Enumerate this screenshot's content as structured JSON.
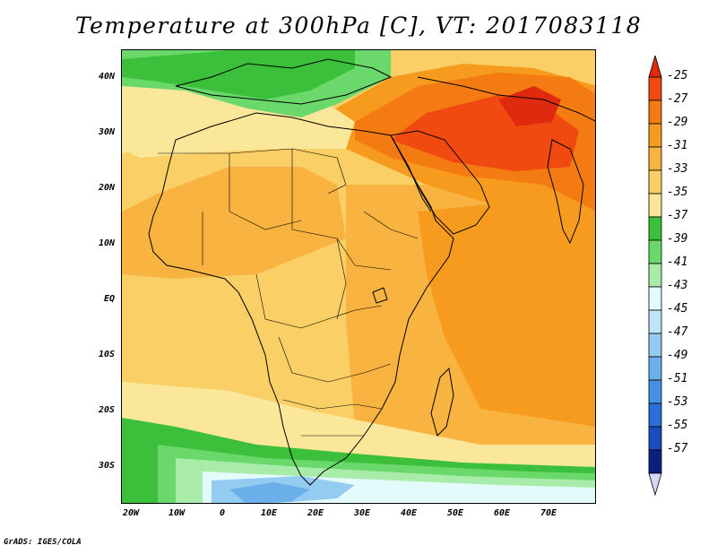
{
  "title": "Temperature at 300hPa [C], VT: 2017083118",
  "credit": "GrADS: IGES/COLA",
  "axes": {
    "lat_labels": [
      "40N",
      "30N",
      "20N",
      "10N",
      "EQ",
      "10S",
      "20S",
      "30S"
    ],
    "lon_labels": [
      "20W",
      "10W",
      "0",
      "10E",
      "20E",
      "30E",
      "40E",
      "50E",
      "60E",
      "70E"
    ]
  },
  "colorbar": {
    "labels": [
      "-25",
      "-27",
      "-29",
      "-31",
      "-33",
      "-35",
      "-37",
      "-39",
      "-41",
      "-43",
      "-45",
      "-47",
      "-49",
      "-51",
      "-53",
      "-55",
      "-57"
    ],
    "colors": [
      "#f04a10",
      "#f47a12",
      "#f79b1e",
      "#f8b341",
      "#f9cf66",
      "#fbe79a",
      "#3cc03c",
      "#6ad86a",
      "#a9eca9",
      "#e4fbfb",
      "#bfe4f6",
      "#93ccf0",
      "#6bb0ea",
      "#4591e3",
      "#2a6fd8",
      "#1a4cbd",
      "#0c2080"
    ],
    "over_color": "#e02a10",
    "under_color": "#d8d8f8"
  },
  "map": {
    "projection": "latlon",
    "lon_range": [
      -23,
      80
    ],
    "lat_range": [
      -37,
      45
    ],
    "background_color": "#f9cf66",
    "coastline_color": "#000000"
  }
}
